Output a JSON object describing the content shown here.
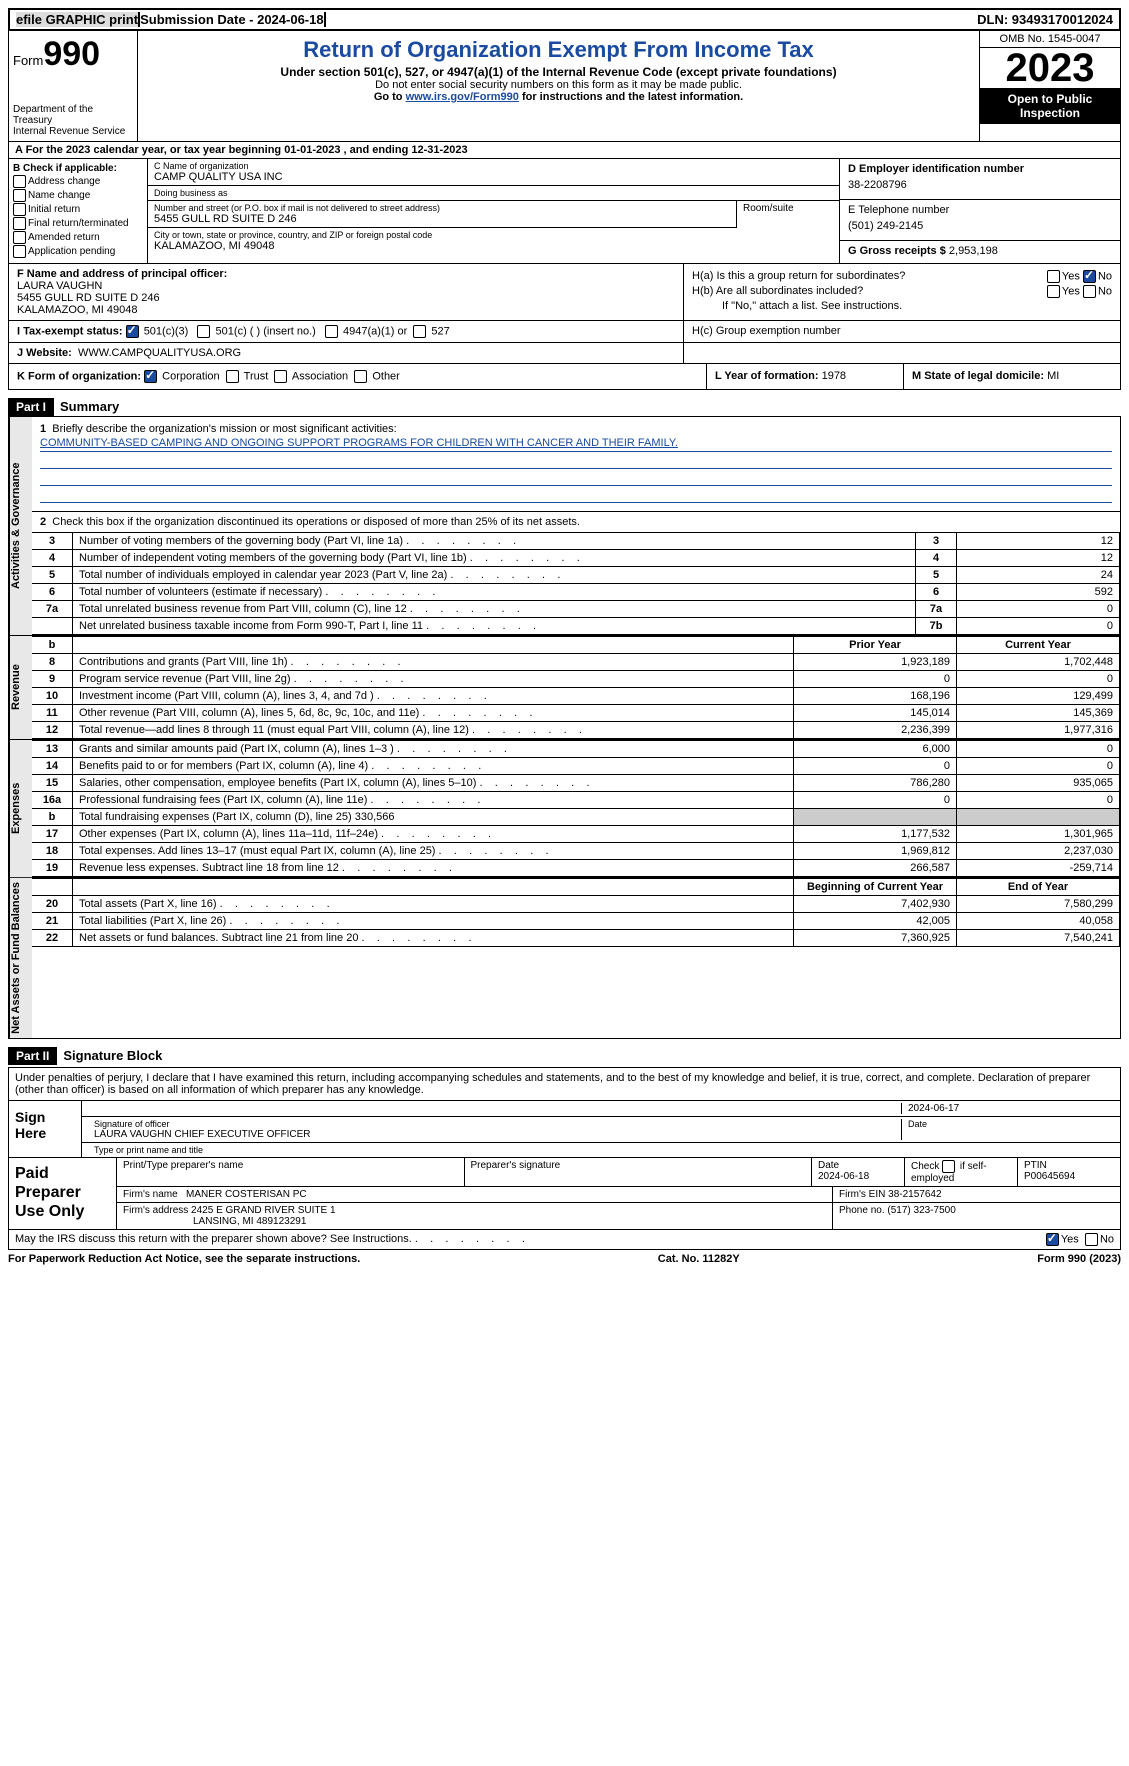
{
  "header": {
    "efile": "efile GRAPHIC print",
    "submission_label": "Submission Date - 2024-06-18",
    "dln_label": "DLN: 93493170012024",
    "form_prefix": "Form",
    "form_num": "990",
    "title": "Return of Organization Exempt From Income Tax",
    "subtitle": "Under section 501(c), 527, or 4947(a)(1) of the Internal Revenue Code (except private foundations)",
    "note1": "Do not enter social security numbers on this form as it may be made public.",
    "note2_pre": "Go to ",
    "note2_link": "www.irs.gov/Form990",
    "note2_post": " for instructions and the latest information.",
    "dept": "Department of the Treasury\nInternal Revenue Service",
    "omb": "OMB No. 1545-0047",
    "year": "2023",
    "open": "Open to Public Inspection"
  },
  "boxA": "A For the 2023 calendar year, or tax year beginning 01-01-2023    , and ending 12-31-2023",
  "B": {
    "label": "B Check if applicable:",
    "opts": [
      "Address change",
      "Name change",
      "Initial return",
      "Final return/terminated",
      "Amended return",
      "Application pending"
    ]
  },
  "C": {
    "name_lbl": "C Name of organization",
    "name": "CAMP QUALITY USA INC",
    "dba_lbl": "Doing business as",
    "dba": "",
    "street_lbl": "Number and street (or P.O. box if mail is not delivered to street address)",
    "street": "5455 GULL RD SUITE D 246",
    "room_lbl": "Room/suite",
    "city_lbl": "City or town, state or province, country, and ZIP or foreign postal code",
    "city": "KALAMAZOO, MI  49048"
  },
  "D": {
    "lbl": "D Employer identification number",
    "val": "38-2208796"
  },
  "E": {
    "lbl": "E Telephone number",
    "val": "(501) 249-2145"
  },
  "G": {
    "lbl": "G Gross receipts $",
    "val": "2,953,198"
  },
  "F": {
    "lbl": "F  Name and address of principal officer:",
    "name": "LAURA VAUGHN",
    "addr1": "5455 GULL RD SUITE D 246",
    "addr2": "KALAMAZOO, MI  49048"
  },
  "H": {
    "a": "H(a)  Is this a group return for subordinates?",
    "b": "H(b)  Are all subordinates included?",
    "b_note": "If \"No,\" attach a list. See instructions.",
    "c": "H(c)  Group exemption number",
    "yes": "Yes",
    "no": "No"
  },
  "I": {
    "lbl": "I    Tax-exempt status:",
    "opt1": "501(c)(3)",
    "opt2": "501(c) (  ) (insert no.)",
    "opt3": "4947(a)(1) or",
    "opt4": "527"
  },
  "J": {
    "lbl": "J    Website:",
    "val": "WWW.CAMPQUALITYUSA.ORG"
  },
  "K": {
    "lbl": "K Form of organization:",
    "opts": [
      "Corporation",
      "Trust",
      "Association",
      "Other"
    ]
  },
  "L": {
    "lbl": "L Year of formation:",
    "val": "1978"
  },
  "M": {
    "lbl": "M State of legal domicile:",
    "val": "MI"
  },
  "part1": {
    "hdr": "Part I",
    "title": "Summary"
  },
  "summary": {
    "l1_lbl": "Briefly describe the organization's mission or most significant activities:",
    "l1_text": "COMMUNITY-BASED CAMPING AND ONGOING SUPPORT PROGRAMS FOR CHILDREN WITH CANCER AND THEIR FAMILY.",
    "l2": "Check this box        if the organization discontinued its operations or disposed of more than 25% of its net assets.",
    "rows_gov": [
      {
        "n": "3",
        "d": "Number of voting members of the governing body (Part VI, line 1a)",
        "b": "3",
        "v": "12"
      },
      {
        "n": "4",
        "d": "Number of independent voting members of the governing body (Part VI, line 1b)",
        "b": "4",
        "v": "12"
      },
      {
        "n": "5",
        "d": "Total number of individuals employed in calendar year 2023 (Part V, line 2a)",
        "b": "5",
        "v": "24"
      },
      {
        "n": "6",
        "d": "Total number of volunteers (estimate if necessary)",
        "b": "6",
        "v": "592"
      },
      {
        "n": "7a",
        "d": "Total unrelated business revenue from Part VIII, column (C), line 12",
        "b": "7a",
        "v": "0"
      },
      {
        "n": "",
        "d": "Net unrelated business taxable income from Form 990-T, Part I, line 11",
        "b": "7b",
        "v": "0"
      }
    ],
    "hdr_b": "b",
    "hdr_prior": "Prior Year",
    "hdr_current": "Current Year",
    "rows_rev": [
      {
        "n": "8",
        "d": "Contributions and grants (Part VIII, line 1h)",
        "p": "1,923,189",
        "c": "1,702,448"
      },
      {
        "n": "9",
        "d": "Program service revenue (Part VIII, line 2g)",
        "p": "0",
        "c": "0"
      },
      {
        "n": "10",
        "d": "Investment income (Part VIII, column (A), lines 3, 4, and 7d )",
        "p": "168,196",
        "c": "129,499"
      },
      {
        "n": "11",
        "d": "Other revenue (Part VIII, column (A), lines 5, 6d, 8c, 9c, 10c, and 11e)",
        "p": "145,014",
        "c": "145,369"
      },
      {
        "n": "12",
        "d": "Total revenue—add lines 8 through 11 (must equal Part VIII, column (A), line 12)",
        "p": "2,236,399",
        "c": "1,977,316"
      }
    ],
    "rows_exp": [
      {
        "n": "13",
        "d": "Grants and similar amounts paid (Part IX, column (A), lines 1–3 )",
        "p": "6,000",
        "c": "0"
      },
      {
        "n": "14",
        "d": "Benefits paid to or for members (Part IX, column (A), line 4)",
        "p": "0",
        "c": "0"
      },
      {
        "n": "15",
        "d": "Salaries, other compensation, employee benefits (Part IX, column (A), lines 5–10)",
        "p": "786,280",
        "c": "935,065"
      },
      {
        "n": "16a",
        "d": "Professional fundraising fees (Part IX, column (A), line 11e)",
        "p": "0",
        "c": "0"
      }
    ],
    "l16b_n": "b",
    "l16b": "Total fundraising expenses (Part IX, column (D), line 25) 330,566",
    "rows_exp2": [
      {
        "n": "17",
        "d": "Other expenses (Part IX, column (A), lines 11a–11d, 11f–24e)",
        "p": "1,177,532",
        "c": "1,301,965"
      },
      {
        "n": "18",
        "d": "Total expenses. Add lines 13–17 (must equal Part IX, column (A), line 25)",
        "p": "1,969,812",
        "c": "2,237,030"
      },
      {
        "n": "19",
        "d": "Revenue less expenses. Subtract line 18 from line 12",
        "p": "266,587",
        "c": "-259,714"
      }
    ],
    "hdr_beg": "Beginning of Current Year",
    "hdr_end": "End of Year",
    "rows_net": [
      {
        "n": "20",
        "d": "Total assets (Part X, line 16)",
        "p": "7,402,930",
        "c": "7,580,299"
      },
      {
        "n": "21",
        "d": "Total liabilities (Part X, line 26)",
        "p": "42,005",
        "c": "40,058"
      },
      {
        "n": "22",
        "d": "Net assets or fund balances. Subtract line 21 from line 20",
        "p": "7,360,925",
        "c": "7,540,241"
      }
    ],
    "side_gov": "Activities & Governance",
    "side_rev": "Revenue",
    "side_exp": "Expenses",
    "side_net": "Net Assets or Fund Balances"
  },
  "part2": {
    "hdr": "Part II",
    "title": "Signature Block"
  },
  "sig": {
    "decl": "Under penalties of perjury, I declare that I have examined this return, including accompanying schedules and statements, and to the best of my knowledge and belief, it is true, correct, and complete. Declaration of preparer (other than officer) is based on all information of which preparer has any knowledge.",
    "sign_here": "Sign Here",
    "sig_officer_lbl": "Signature of officer",
    "officer": "LAURA VAUGHN  CHIEF EXECUTIVE OFFICER",
    "type_name_lbl": "Type or print name and title",
    "date_lbl": "Date",
    "date": "2024-06-17"
  },
  "prep": {
    "side": "Paid Preparer Use Only",
    "col1": "Print/Type preparer's name",
    "col2": "Preparer's signature",
    "col3_lbl": "Date",
    "col3": "2024-06-18",
    "col4": "Check        if self-employed",
    "col5_lbl": "PTIN",
    "col5": "P00645694",
    "firm_lbl": "Firm's name",
    "firm": "MANER COSTERISAN PC",
    "ein_lbl": "Firm's EIN",
    "ein": "38-2157642",
    "addr_lbl": "Firm's address",
    "addr1": "2425 E GRAND RIVER SUITE 1",
    "addr2": "LANSING, MI  489123291",
    "phone_lbl": "Phone no.",
    "phone": "(517) 323-7500"
  },
  "footer": {
    "discuss": "May the IRS discuss this return with the preparer shown above? See Instructions.",
    "yes": "Yes",
    "no": "No",
    "paperwork": "For Paperwork Reduction Act Notice, see the separate instructions.",
    "cat": "Cat. No. 11282Y",
    "form": "Form 990 (2023)"
  }
}
